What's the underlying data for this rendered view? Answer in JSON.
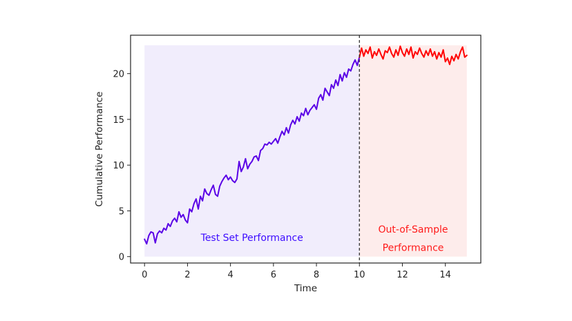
{
  "chart_data": {
    "type": "line",
    "xlabel": "Time",
    "ylabel": "Cumulative Performance",
    "xlim": [
      -0.65,
      15.65
    ],
    "ylim": [
      -0.7,
      24.2
    ],
    "xticks": [
      0,
      2,
      4,
      6,
      8,
      10,
      12,
      14
    ],
    "yticks": [
      0,
      5,
      10,
      15,
      20
    ],
    "grid": false,
    "split_x": 10,
    "regions": [
      {
        "x_start": 0,
        "x_end": 10,
        "y_start": 0,
        "y_end": 23.1,
        "color": "#f1edfc"
      },
      {
        "x_start": 10,
        "x_end": 15,
        "y_start": 0,
        "y_end": 23.1,
        "color": "#fdeceb"
      }
    ],
    "annotations": [
      {
        "text": "Test Set Performance",
        "x": 5.0,
        "y": 2.1,
        "color": "#3d0cff"
      },
      {
        "text": "Out-of-Sample",
        "x": 12.5,
        "y": 3.0,
        "color": "#ff1a1a"
      },
      {
        "text": "Performance",
        "x": 12.5,
        "y": 1.0,
        "color": "#ff1a1a"
      }
    ],
    "series": [
      {
        "color": "#5a00e6",
        "x": [
          0.0,
          0.1,
          0.2,
          0.3,
          0.4,
          0.5,
          0.6,
          0.7,
          0.8,
          0.9,
          1.0,
          1.1,
          1.2,
          1.3,
          1.4,
          1.5,
          1.6,
          1.7,
          1.8,
          1.9,
          2.0,
          2.1,
          2.2,
          2.3,
          2.4,
          2.5,
          2.6,
          2.7,
          2.8,
          2.9,
          3.0,
          3.1,
          3.2,
          3.3,
          3.4,
          3.5,
          3.6,
          3.7,
          3.8,
          3.9,
          4.0,
          4.1,
          4.2,
          4.3,
          4.4,
          4.5,
          4.6,
          4.7,
          4.8,
          4.9,
          5.0,
          5.1,
          5.2,
          5.3,
          5.4,
          5.5,
          5.6,
          5.7,
          5.8,
          5.9,
          6.0,
          6.1,
          6.2,
          6.3,
          6.4,
          6.5,
          6.6,
          6.7,
          6.8,
          6.9,
          7.0,
          7.1,
          7.2,
          7.3,
          7.4,
          7.5,
          7.6,
          7.7,
          7.8,
          7.9,
          8.0,
          8.1,
          8.2,
          8.3,
          8.4,
          8.5,
          8.6,
          8.7,
          8.8,
          8.9,
          9.0,
          9.1,
          9.2,
          9.3,
          9.4,
          9.5,
          9.6,
          9.7,
          9.8,
          9.9,
          10.0
        ],
        "y": [
          1.9,
          1.4,
          2.3,
          2.7,
          2.6,
          1.5,
          2.5,
          2.8,
          2.6,
          3.1,
          2.9,
          3.6,
          3.3,
          3.9,
          4.2,
          3.8,
          4.9,
          4.3,
          4.6,
          4.0,
          3.7,
          5.2,
          4.9,
          5.8,
          6.3,
          5.2,
          6.6,
          6.1,
          7.4,
          6.9,
          6.7,
          7.3,
          7.8,
          6.8,
          6.6,
          7.7,
          8.2,
          8.6,
          8.9,
          8.4,
          8.7,
          8.3,
          8.1,
          8.5,
          10.4,
          9.3,
          9.8,
          10.7,
          9.6,
          10.1,
          10.4,
          10.9,
          11.0,
          10.5,
          11.6,
          11.8,
          12.3,
          12.2,
          12.5,
          12.3,
          12.6,
          12.9,
          12.4,
          13.1,
          13.7,
          13.3,
          14.1,
          13.5,
          14.4,
          14.9,
          14.5,
          15.3,
          14.8,
          15.7,
          15.4,
          16.2,
          15.5,
          16.0,
          16.3,
          16.6,
          16.1,
          17.3,
          17.7,
          17.1,
          18.4,
          18.0,
          17.6,
          18.8,
          18.4,
          19.3,
          18.7,
          19.9,
          19.2,
          20.1,
          19.6,
          20.5,
          20.3,
          21.0,
          21.5,
          20.9,
          21.8
        ]
      },
      {
        "color": "#ff0000",
        "x": [
          10.0,
          10.1,
          10.2,
          10.3,
          10.4,
          10.5,
          10.6,
          10.7,
          10.8,
          10.9,
          11.0,
          11.1,
          11.2,
          11.3,
          11.4,
          11.5,
          11.6,
          11.7,
          11.8,
          11.9,
          12.0,
          12.1,
          12.2,
          12.3,
          12.4,
          12.5,
          12.6,
          12.7,
          12.8,
          12.9,
          13.0,
          13.1,
          13.2,
          13.3,
          13.4,
          13.5,
          13.6,
          13.7,
          13.8,
          13.9,
          14.0,
          14.1,
          14.2,
          14.3,
          14.4,
          14.5,
          14.6,
          14.7,
          14.8,
          14.9,
          15.0
        ],
        "y": [
          21.8,
          22.8,
          21.9,
          22.6,
          22.2,
          22.9,
          21.7,
          22.4,
          22.0,
          22.7,
          22.1,
          21.6,
          22.5,
          22.3,
          22.9,
          22.2,
          21.8,
          22.6,
          22.0,
          23.0,
          22.3,
          21.9,
          22.7,
          22.1,
          22.9,
          21.7,
          22.4,
          22.1,
          22.8,
          22.2,
          21.8,
          22.5,
          22.0,
          22.7,
          21.9,
          22.4,
          21.6,
          22.3,
          21.8,
          22.6,
          21.3,
          21.7,
          21.0,
          21.9,
          21.4,
          22.1,
          21.6,
          22.4,
          22.9,
          21.8,
          22.0
        ]
      }
    ]
  }
}
